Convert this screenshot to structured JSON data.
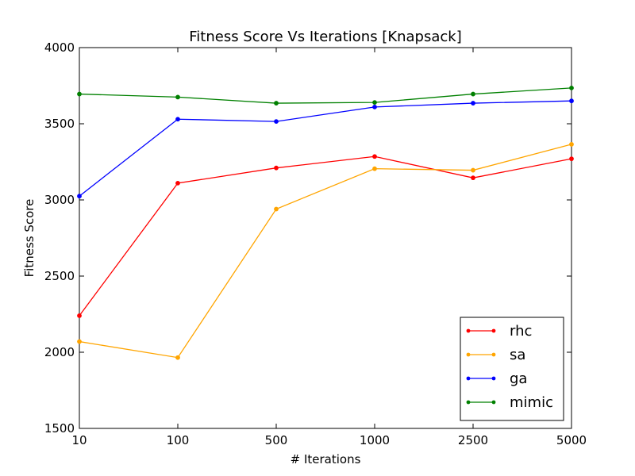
{
  "chart_data": {
    "type": "line",
    "title": "Fitness Score Vs Iterations [Knapsack]",
    "xlabel": "# Iterations",
    "ylabel": "Fitness Score",
    "categories": [
      "10",
      "100",
      "500",
      "1000",
      "2500",
      "5000"
    ],
    "ylim": [
      1500,
      4000
    ],
    "yticks": [
      "1500",
      "2000",
      "2500",
      "3000",
      "3500",
      "4000"
    ],
    "grid": false,
    "legend_position": "lower-right",
    "series": [
      {
        "name": "rhc",
        "color": "#ff0000",
        "values": [
          2240,
          3110,
          3210,
          3285,
          3145,
          3270
        ]
      },
      {
        "name": "sa",
        "color": "#ffa500",
        "values": [
          2070,
          1965,
          2940,
          3205,
          3195,
          3365
        ]
      },
      {
        "name": "ga",
        "color": "#0000ff",
        "values": [
          3025,
          3530,
          3515,
          3610,
          3635,
          3650
        ]
      },
      {
        "name": "mimic",
        "color": "#008000",
        "values": [
          3695,
          3675,
          3635,
          3640,
          3695,
          3735
        ]
      }
    ]
  }
}
